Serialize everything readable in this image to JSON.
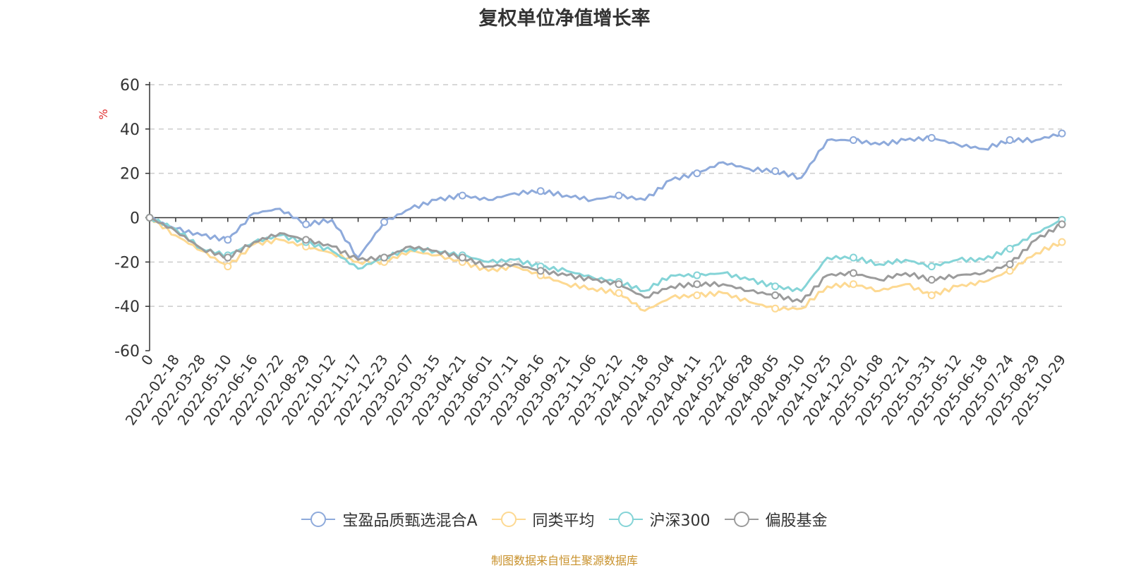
{
  "chart_data": {
    "type": "line",
    "title": "复权单位净值增长率",
    "ylabel": "%",
    "xlabel": "",
    "ylim": [
      -60,
      60
    ],
    "yticks": [
      60,
      40,
      20,
      0,
      -20,
      -40,
      -60
    ],
    "x_tick_labels": [
      "0",
      "2022-02-18",
      "2022-03-28",
      "2022-05-10",
      "2022-06-16",
      "2022-07-22",
      "2022-08-29",
      "2022-10-12",
      "2022-11-17",
      "2022-12-23",
      "2023-02-07",
      "2023-03-15",
      "2023-04-21",
      "2023-06-01",
      "2023-07-11",
      "2023-08-16",
      "2023-09-21",
      "2023-11-06",
      "2023-12-12",
      "2024-01-18",
      "2024-03-04",
      "2024-04-11",
      "2024-05-22",
      "2024-06-28",
      "2024-08-05",
      "2024-09-10",
      "2024-10-25",
      "2024-12-02",
      "2025-01-08",
      "2025-02-21",
      "2025-03-31",
      "2025-05-12",
      "2025-06-18",
      "2025-07-24",
      "2025-08-29",
      "2025-10-29"
    ],
    "series": [
      {
        "name": "宝盈品质甄选混合A",
        "color": "#8eaadb",
        "values": [
          0,
          -5,
          -8,
          -10,
          2,
          4,
          -3,
          -1,
          -18,
          -2,
          4,
          8,
          10,
          8,
          11,
          12,
          10,
          8,
          10,
          8,
          17,
          20,
          25,
          22,
          21,
          18,
          35,
          35,
          33,
          35,
          36,
          33,
          31,
          35,
          35,
          38
        ]
      },
      {
        "name": "同类平均",
        "color": "#fdd992",
        "values": [
          0,
          -8,
          -15,
          -22,
          -12,
          -10,
          -13,
          -16,
          -20,
          -20,
          -15,
          -17,
          -20,
          -24,
          -22,
          -26,
          -30,
          -32,
          -34,
          -42,
          -36,
          -35,
          -34,
          -38,
          -41,
          -41,
          -31,
          -30,
          -33,
          -30,
          -35,
          -31,
          -29,
          -24,
          -16,
          -11
        ]
      },
      {
        "name": "沪深300",
        "color": "#85d4d7",
        "values": [
          0,
          -5,
          -14,
          -17,
          -11,
          -8,
          -11,
          -15,
          -23,
          -18,
          -14,
          -15,
          -17,
          -20,
          -19,
          -22,
          -24,
          -27,
          -29,
          -33,
          -26,
          -26,
          -25,
          -28,
          -31,
          -33,
          -18,
          -18,
          -21,
          -19,
          -22,
          -19,
          -19,
          -14,
          -7,
          -1
        ]
      },
      {
        "name": "偏股基金",
        "color": "#9b9b9b",
        "values": [
          0,
          -6,
          -14,
          -18,
          -11,
          -7,
          -10,
          -13,
          -19,
          -18,
          -13,
          -15,
          -18,
          -22,
          -21,
          -24,
          -26,
          -28,
          -30,
          -36,
          -31,
          -30,
          -30,
          -33,
          -35,
          -38,
          -26,
          -25,
          -28,
          -25,
          -28,
          -26,
          -25,
          -21,
          -10,
          -3
        ]
      }
    ]
  },
  "legend": {
    "items": [
      "宝盈品质甄选混合A",
      "同类平均",
      "沪深300",
      "偏股基金"
    ]
  },
  "source_text": "制图数据来自恒生聚源数据库"
}
